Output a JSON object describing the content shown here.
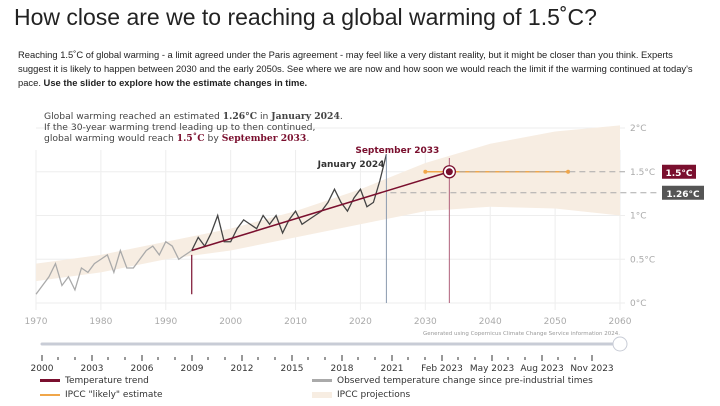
{
  "title": "How close are we to reaching a global warming of 1.5˚C?",
  "intro": {
    "text": "Reaching 1.5˚C of global warming - a limit agreed under the Paris agreement - may feel like a very distant reality, but it might be closer than you think. Experts suggest it is likely to happen between 2030 and the early 2050s. See where we are now and how soon we would reach the limit if the warming continued at today's pace. ",
    "bold": "Use the slider to explore how the estimate changes in time."
  },
  "summary": {
    "l1a": "Global warming reached an estimated ",
    "l1b": "1.26°C",
    "l1c": " in ",
    "l1d": "January 2024",
    "l1e": ".",
    "l2": "If the 30-year warming trend leading up to then continued,",
    "l3a": "global warming would reach ",
    "l3b": "1.5˚C",
    "l3c": " by ",
    "l3d": "September 2033",
    "l3e": "."
  },
  "credit": "Generated using Copernicus Climate Change Service information 2024.",
  "slider": {
    "value_fraction": 1.0,
    "labels": [
      "2000",
      "2003",
      "2006",
      "2009",
      "2012",
      "2015",
      "2018",
      "2021",
      "Feb 2023",
      "May 2023",
      "Aug 2023",
      "Nov 2023"
    ]
  },
  "legend": {
    "trend": "Temperature trend",
    "observed": "Observed temperature change since pre-industrial times",
    "likely": "IPCC \"likely\" estimate",
    "projections": "IPCC projections"
  },
  "colors": {
    "trend": "#7a0f2e",
    "observed_old": "#aaaaaa",
    "observed_recent": "#444444",
    "likely": "#f0a64a",
    "projection": "#f7ede2",
    "current_badge": "#555555"
  },
  "chart_data": {
    "type": "line",
    "x_ticks": [
      "1970",
      "1980",
      "1990",
      "2000",
      "2010",
      "2020",
      "2030",
      "2040",
      "2050",
      "2060"
    ],
    "y_ticks": [
      "0°C",
      "0.5°C",
      "1°C",
      "1.5°C",
      "2°C"
    ],
    "xlim": [
      1970,
      2060
    ],
    "ylim": [
      0,
      2
    ],
    "observed": {
      "x": [
        1970,
        1971,
        1972,
        1973,
        1974,
        1975,
        1976,
        1977,
        1978,
        1979,
        1980,
        1981,
        1982,
        1983,
        1984,
        1985,
        1986,
        1987,
        1988,
        1989,
        1990,
        1991,
        1992,
        1993,
        1994,
        1995,
        1996,
        1997,
        1998,
        1999,
        2000,
        2001,
        2002,
        2003,
        2004,
        2005,
        2006,
        2007,
        2008,
        2009,
        2010,
        2011,
        2012,
        2013,
        2014,
        2015,
        2016,
        2017,
        2018,
        2019,
        2020,
        2021,
        2022,
        2023,
        2024
      ],
      "y": [
        0.1,
        0.2,
        0.3,
        0.45,
        0.2,
        0.3,
        0.15,
        0.4,
        0.35,
        0.45,
        0.5,
        0.55,
        0.35,
        0.6,
        0.4,
        0.4,
        0.5,
        0.6,
        0.65,
        0.55,
        0.7,
        0.65,
        0.5,
        0.55,
        0.6,
        0.75,
        0.65,
        0.8,
        1.0,
        0.7,
        0.7,
        0.85,
        0.95,
        0.9,
        0.85,
        1.0,
        0.9,
        1.0,
        0.8,
        0.95,
        1.05,
        0.9,
        0.95,
        1.0,
        1.05,
        1.15,
        1.3,
        1.15,
        1.05,
        1.2,
        1.3,
        1.1,
        1.15,
        1.4,
        1.7
      ],
      "recent_start": 1994
    },
    "trend": {
      "x": [
        1994,
        2033.7
      ],
      "y": [
        0.6,
        1.5
      ]
    },
    "current": {
      "label": "January 2024",
      "x": 2024,
      "value": 1.26,
      "badge": "1.26°C"
    },
    "crossing": {
      "label": "September 2033",
      "x": 2033.7,
      "value": 1.5,
      "badge": "1.5°C"
    },
    "likely_range": {
      "x": [
        2030,
        2052
      ],
      "y": 1.5
    },
    "projection_band": {
      "x": [
        1970,
        1980,
        1990,
        2000,
        2010,
        2020,
        2030,
        2040,
        2050,
        2060
      ],
      "lower": [
        0.25,
        0.35,
        0.5,
        0.6,
        0.75,
        0.9,
        1.05,
        1.1,
        1.08,
        1.0
      ],
      "upper": [
        0.45,
        0.55,
        0.7,
        0.85,
        1.05,
        1.3,
        1.6,
        1.82,
        1.96,
        2.03
      ]
    }
  }
}
